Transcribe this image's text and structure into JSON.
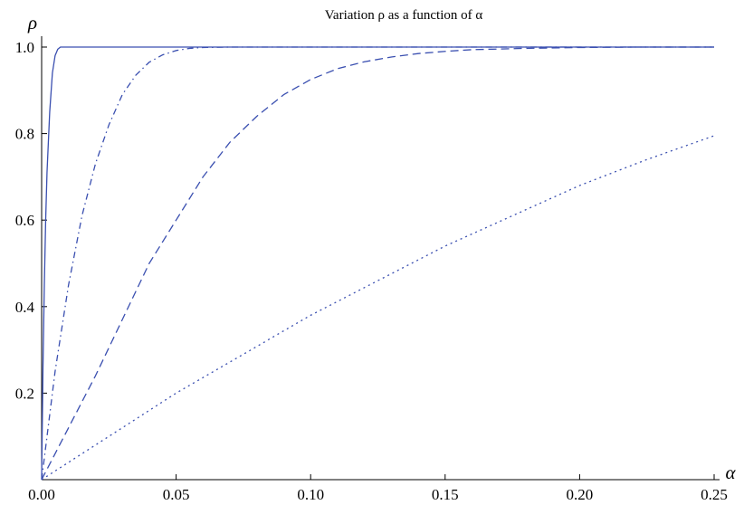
{
  "chart_data": {
    "type": "line",
    "title": "Variation ρ as a function of α",
    "xlabel": "α",
    "ylabel": "ρ",
    "xlim": [
      0,
      0.25
    ],
    "ylim": [
      0,
      1.0
    ],
    "x_ticks": [
      "0.00",
      "0.05",
      "0.10",
      "0.15",
      "0.20",
      "0.25"
    ],
    "x_tick_values": [
      0,
      0.05,
      0.1,
      0.15,
      0.2,
      0.25
    ],
    "y_ticks": [
      "0.2",
      "0.4",
      "0.6",
      "0.8",
      "1.0"
    ],
    "y_tick_values": [
      0.2,
      0.4,
      0.6,
      0.8,
      1.0
    ],
    "grid": false,
    "line_color": "#3a4fb0",
    "series": [
      {
        "style": "solid",
        "x": [
          0,
          0.0005,
          0.001,
          0.0015,
          0.002,
          0.003,
          0.004,
          0.005,
          0.006,
          0.007,
          0.01,
          0.05,
          0.1,
          0.15,
          0.2,
          0.25
        ],
        "y": [
          0,
          0.26,
          0.45,
          0.6,
          0.71,
          0.85,
          0.94,
          0.98,
          0.995,
          1.0,
          1.0,
          1.0,
          1.0,
          1.0,
          1.0,
          1.0
        ]
      },
      {
        "style": "dashdot",
        "x": [
          0,
          0.005,
          0.01,
          0.015,
          0.02,
          0.025,
          0.03,
          0.035,
          0.04,
          0.045,
          0.05,
          0.055,
          0.06,
          0.07,
          0.1,
          0.15,
          0.2,
          0.25
        ],
        "y": [
          0,
          0.25,
          0.45,
          0.61,
          0.73,
          0.82,
          0.89,
          0.935,
          0.965,
          0.982,
          0.992,
          0.997,
          0.999,
          1.0,
          1.0,
          1.0,
          1.0,
          1.0
        ]
      },
      {
        "style": "dashed",
        "x": [
          0,
          0.01,
          0.02,
          0.03,
          0.04,
          0.05,
          0.06,
          0.07,
          0.08,
          0.09,
          0.1,
          0.11,
          0.12,
          0.13,
          0.14,
          0.15,
          0.16,
          0.18,
          0.2,
          0.22,
          0.25
        ],
        "y": [
          0,
          0.12,
          0.24,
          0.37,
          0.5,
          0.6,
          0.7,
          0.78,
          0.84,
          0.89,
          0.925,
          0.95,
          0.966,
          0.977,
          0.985,
          0.99,
          0.994,
          0.997,
          0.999,
          1.0,
          1.0
        ]
      },
      {
        "style": "dotted",
        "x": [
          0,
          0.025,
          0.05,
          0.075,
          0.1,
          0.125,
          0.15,
          0.175,
          0.2,
          0.225,
          0.25
        ],
        "y": [
          0,
          0.1,
          0.2,
          0.29,
          0.38,
          0.46,
          0.54,
          0.61,
          0.68,
          0.74,
          0.795
        ]
      }
    ]
  }
}
